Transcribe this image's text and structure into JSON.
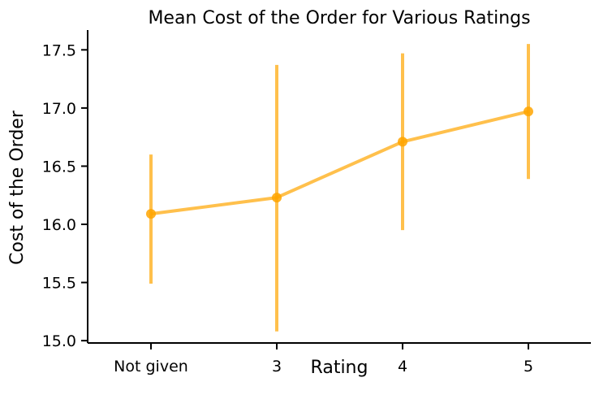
{
  "chart_data": {
    "type": "line",
    "title": "Mean Cost of the Order for Various Ratings",
    "xlabel": "Rating",
    "ylabel": "Cost of the Order",
    "categories": [
      "Not given",
      "3",
      "4",
      "5"
    ],
    "series": [
      {
        "values": [
          16.09,
          16.23,
          16.71,
          16.97
        ],
        "ci_lower": [
          15.49,
          15.08,
          15.95,
          16.39
        ],
        "ci_upper": [
          16.6,
          17.37,
          17.47,
          17.55
        ],
        "color": "#FFA500"
      }
    ],
    "ylim": [
      14.98,
      17.67
    ],
    "yticks": [
      "15.0",
      "15.5",
      "16.0",
      "16.5",
      "17.0",
      "17.5"
    ],
    "ytick_values": [
      15.0,
      15.5,
      16.0,
      16.5,
      17.0,
      17.5
    ],
    "grid": false
  }
}
